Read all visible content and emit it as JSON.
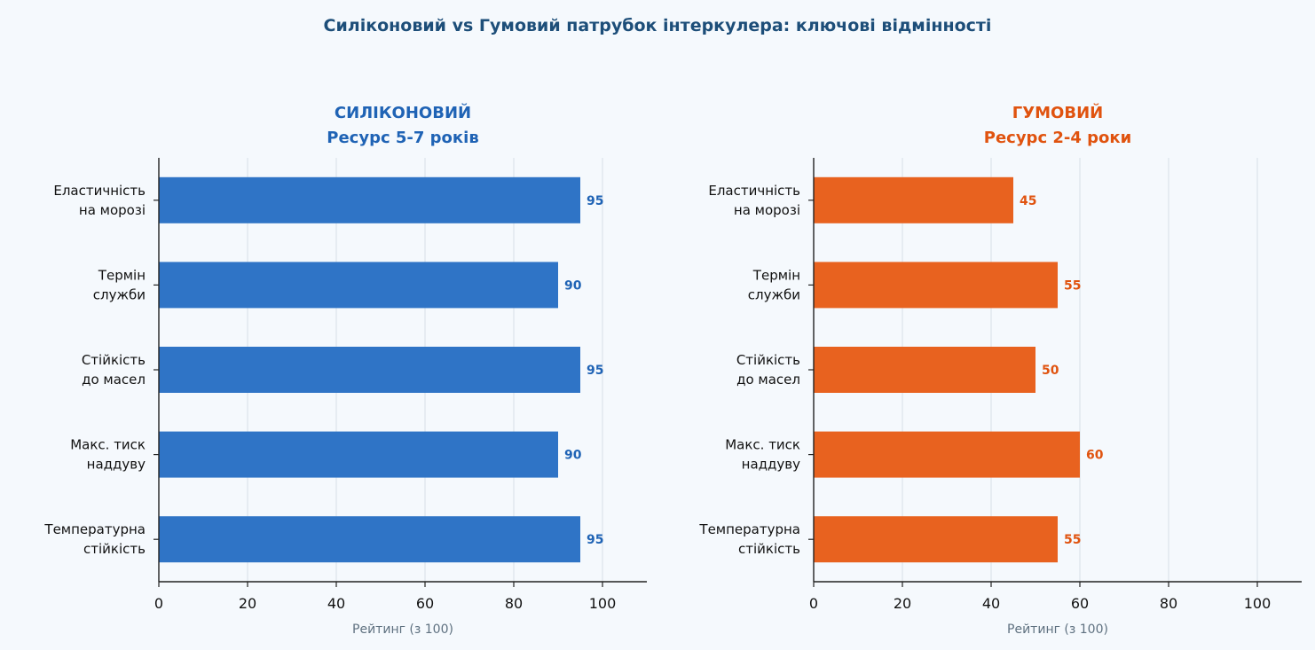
{
  "title": "Силіконовий vs Гумовий патрубок інтеркулера: ключові відмінності",
  "chart_data": [
    {
      "type": "bar",
      "orientation": "horizontal",
      "title": "СИЛІКОНОВИЙ",
      "subtitle": "Ресурс 5-7 років",
      "categories": [
        "Еластичність\nна морозі",
        "Термін\nслужби",
        "Стійкість\nдо масел",
        "Макс. тиск\nнаддуву",
        "Температурна\nстійкість"
      ],
      "values": [
        95,
        90,
        95,
        90,
        95
      ],
      "xlabel": "Рейтинг (з 100)",
      "xlim": [
        0,
        110
      ],
      "xticks": [
        0,
        20,
        40,
        60,
        80,
        100
      ],
      "grid": "vertical",
      "bar_color": "#2f74c6",
      "accent_color": "#1f63b5"
    },
    {
      "type": "bar",
      "orientation": "horizontal",
      "title": "ГУМОВИЙ",
      "subtitle": "Ресурс 2-4 роки",
      "categories": [
        "Еластичність\nна морозі",
        "Термін\nслужби",
        "Стійкість\nдо масел",
        "Макс. тиск\nнаддуву",
        "Температурна\nстійкість"
      ],
      "values": [
        45,
        55,
        50,
        60,
        55
      ],
      "xlabel": "Рейтинг (з 100)",
      "xlim": [
        0,
        110
      ],
      "xticks": [
        0,
        20,
        40,
        60,
        80,
        100
      ],
      "grid": "vertical",
      "bar_color": "#e8621f",
      "accent_color": "#e0530f"
    }
  ],
  "colors": {
    "title": "#1d4e79",
    "axis": "#222222",
    "grid": "#dde3ea"
  }
}
